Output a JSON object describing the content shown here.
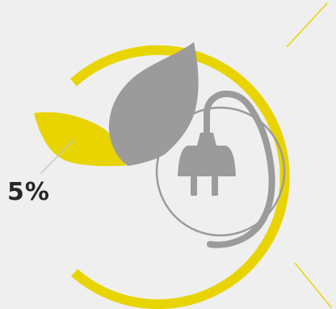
{
  "figure": {
    "percentage_label": "5%",
    "colors": {
      "background": "#efefef",
      "accent": "#e8d400",
      "gray": "#9b9b9b",
      "line": "#c8c8c8",
      "text": "#262626"
    },
    "icons": [
      "leaf-icon",
      "power-plug-icon"
    ]
  }
}
